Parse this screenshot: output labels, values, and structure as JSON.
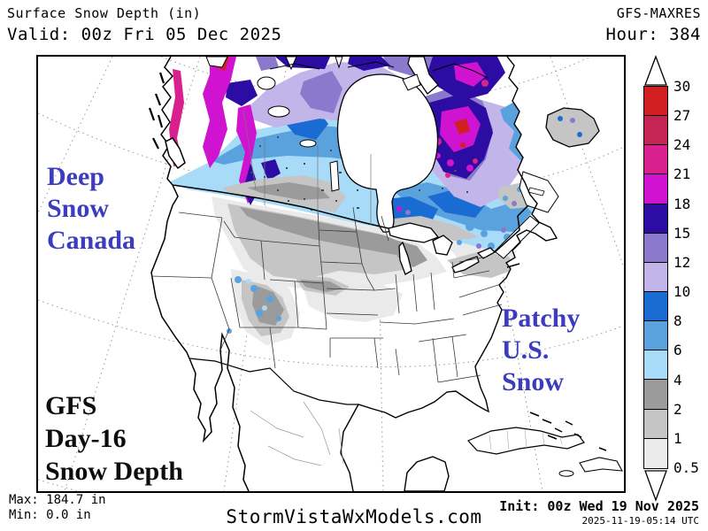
{
  "header": {
    "title": "Surface Snow Depth (in)",
    "valid": "Valid: 00z Fri 05 Dec 2025",
    "model": "GFS-MAXRES",
    "hour": "Hour: 384"
  },
  "map": {
    "annotation_color": "#3c3cbe",
    "annotations": {
      "canada": {
        "line1": "Deep",
        "line2": "Snow",
        "line3": "Canada"
      },
      "us": {
        "line1": "Patchy",
        "line2": "U.S.",
        "line3": "Snow"
      },
      "product": {
        "line1": "GFS",
        "line2": "Day-16",
        "line3": "Snow Depth"
      }
    }
  },
  "colorbar": {
    "labels": [
      "30",
      "27",
      "24",
      "21",
      "18",
      "15",
      "12",
      "10",
      "8",
      "6",
      "4",
      "2",
      "1",
      "0.5"
    ],
    "colors": [
      "#d21f1f",
      "#c62553",
      "#d8218f",
      "#d013d0",
      "#2c0ca2",
      "#8b79cd",
      "#c2b5e9",
      "#1a6bd2",
      "#5aa2de",
      "#a8dbf8",
      "#9b9b9b",
      "#c5c5c5",
      "#eaeaea"
    ]
  },
  "footer": {
    "max": "Max: 184.7 in",
    "min": "Min: 0.0 in",
    "site": "StormVistaWxModels.com",
    "init": "Init: 00z Wed 19 Nov 2025",
    "timestamp": "2025-11-19-05:14 UTC"
  }
}
